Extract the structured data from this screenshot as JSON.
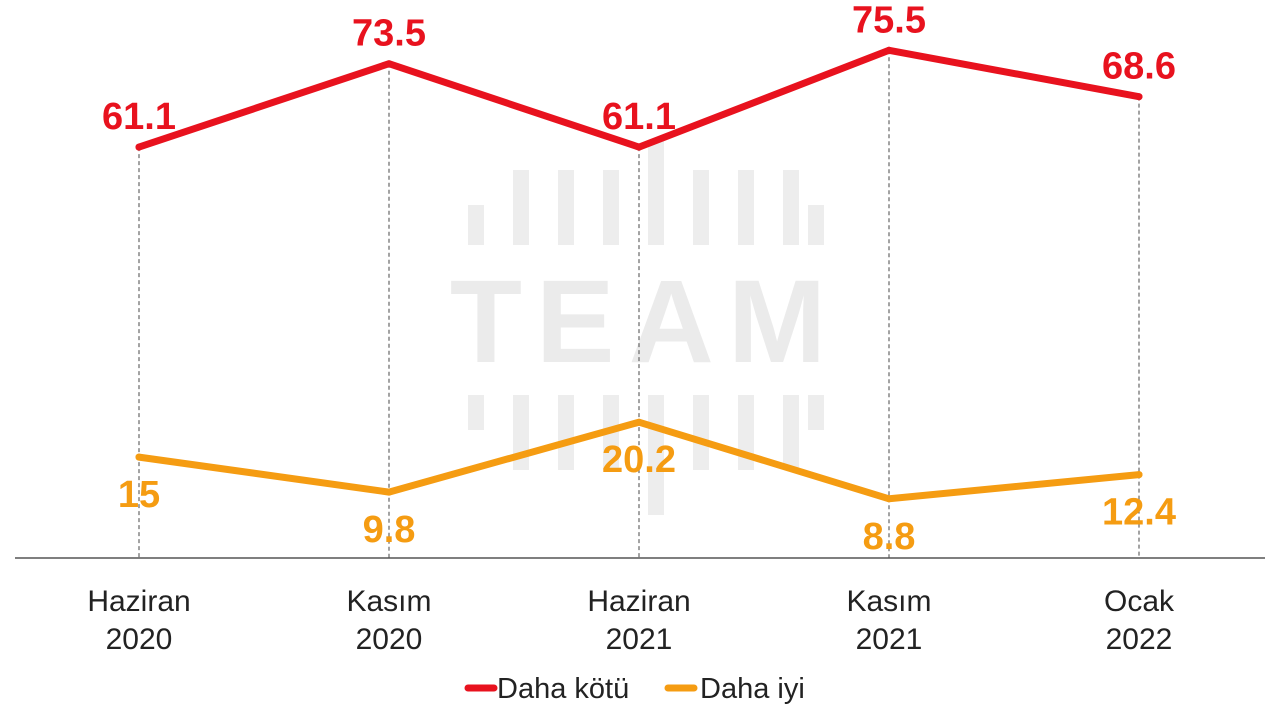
{
  "chart_data": {
    "type": "line",
    "title": "",
    "xlabel": "",
    "ylabel": "",
    "categories": [
      [
        "Haziran",
        "2020"
      ],
      [
        "Kasım",
        "2020"
      ],
      [
        "Haziran",
        "2021"
      ],
      [
        "Kasım",
        "2021"
      ],
      [
        "Ocak",
        "2022"
      ]
    ],
    "series": [
      {
        "name": "Daha kötü",
        "color": "#e8121e",
        "values": [
          61.1,
          73.5,
          61.1,
          75.5,
          68.6
        ],
        "labels": [
          "61.1",
          "73.5",
          "61.1",
          "75.5",
          "68.6"
        ],
        "label_position": "above"
      },
      {
        "name": "Daha iyi",
        "color": "#f59c12",
        "values": [
          15,
          9.8,
          20.2,
          8.8,
          12.4
        ],
        "labels": [
          "15",
          "9.8",
          "20.2",
          "8.8",
          "12.4"
        ],
        "label_position": "below"
      }
    ],
    "ylim": [
      0,
      80
    ],
    "grid": false,
    "drop_lines": true,
    "legend_position": "bottom-center"
  },
  "watermark": {
    "text": "TEAM"
  }
}
